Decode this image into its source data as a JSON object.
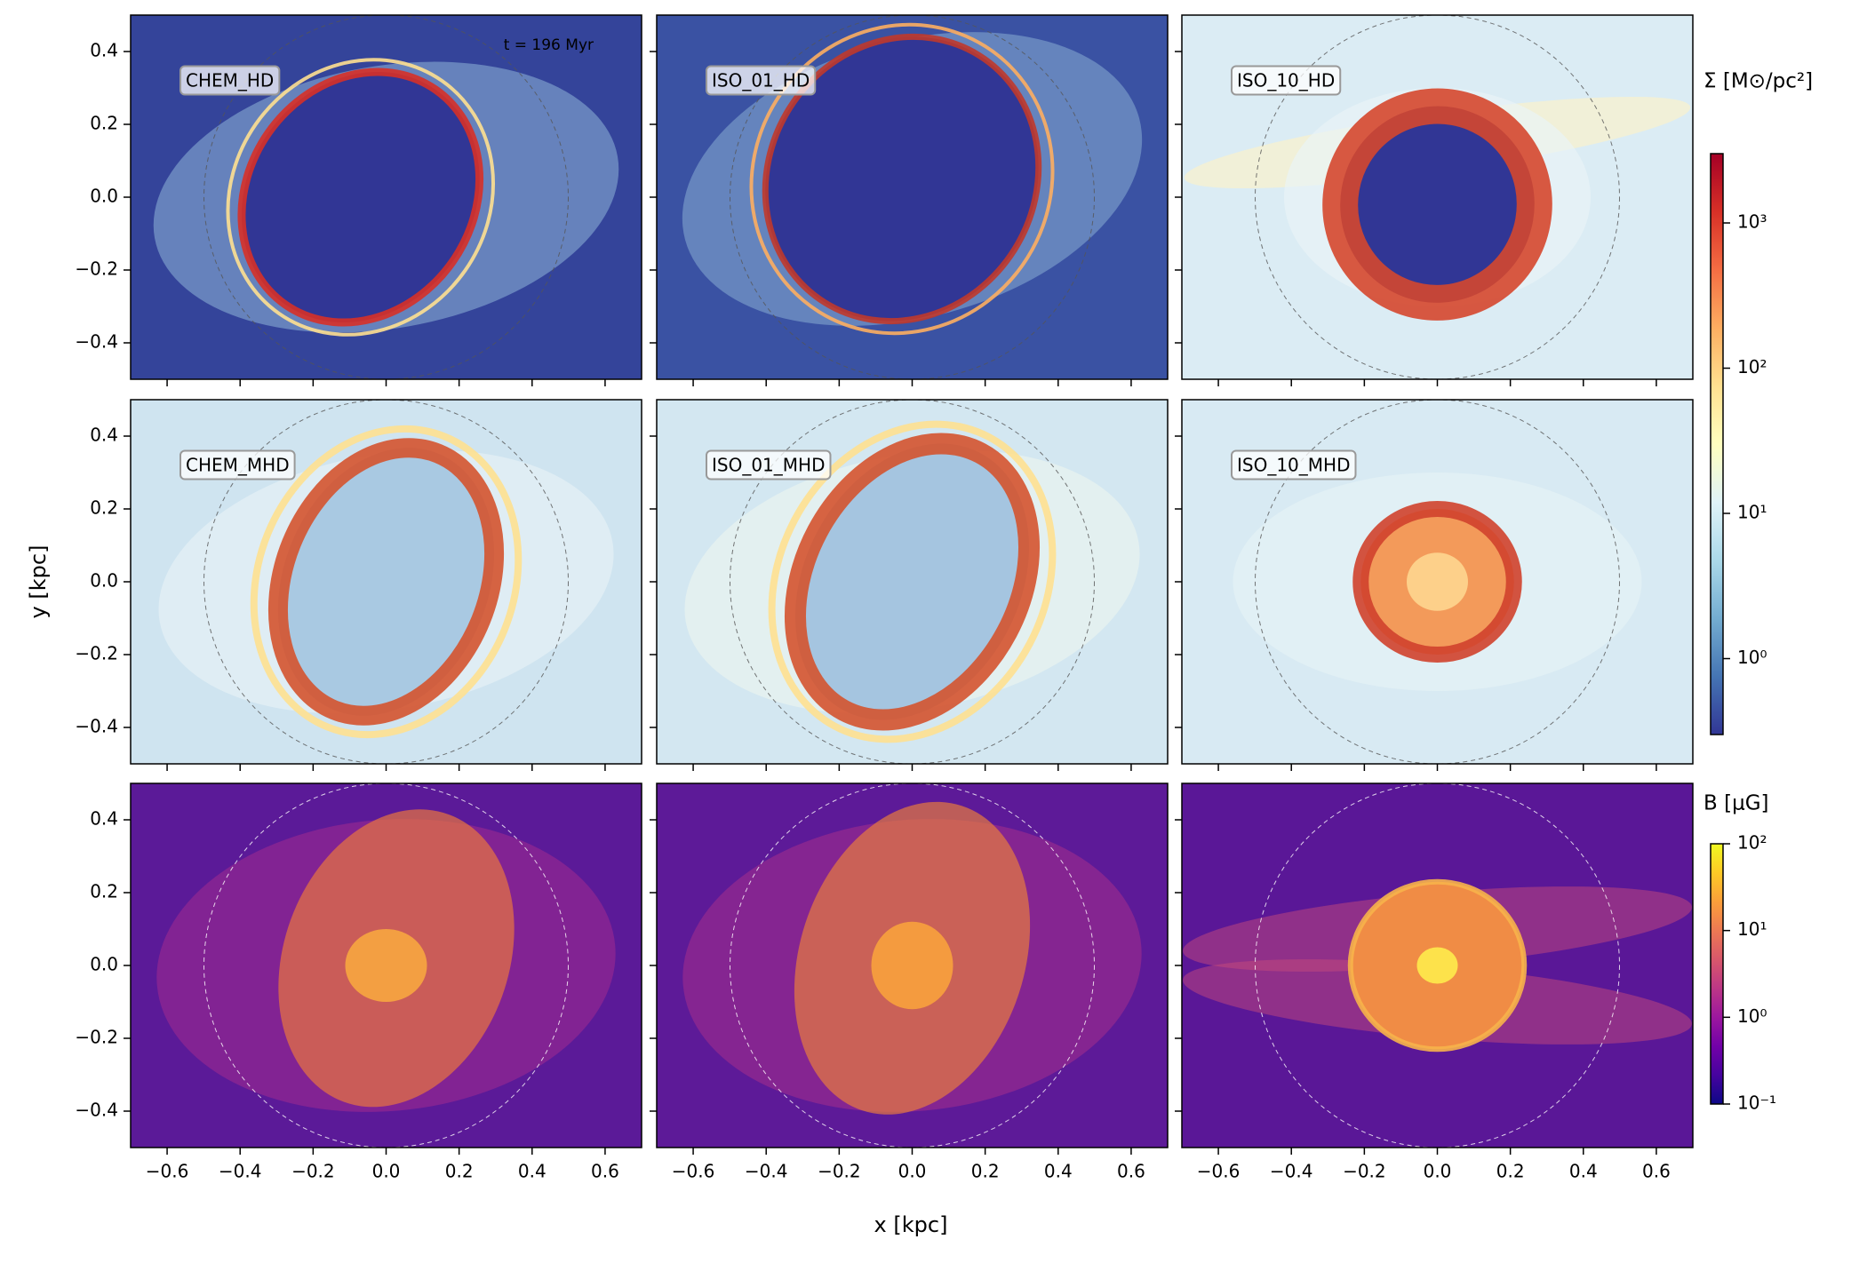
{
  "chart_data": {
    "type": "image-grid",
    "xlabel": "x [kpc]",
    "ylabel": "y [kpc]",
    "annotation": "t = 196 Myr",
    "xlim": [
      -0.7,
      0.7
    ],
    "ylim": [
      -0.5,
      0.5
    ],
    "xticks": [
      {
        "value": -0.6,
        "label": "−0.6"
      },
      {
        "value": -0.4,
        "label": "−0.4"
      },
      {
        "value": -0.2,
        "label": "−0.2"
      },
      {
        "value": 0,
        "label": "0.0"
      },
      0.2,
      0.4,
      0.6
    ],
    "yticks": [
      {
        "value": -0.4,
        "label": "−0.4"
      },
      {
        "value": -0.2,
        "label": "−0.2"
      },
      {
        "value": 0,
        "label": "0.0"
      },
      0.2,
      0.4
    ],
    "colorbars": [
      {
        "label": "Σ [M⊙/pc²]",
        "colormap": "RdYlBu_r",
        "log": true,
        "lim": [
          0.3,
          3000
        ],
        "ticks": [
          {
            "value": 1,
            "label": "10⁰"
          },
          {
            "value": 10,
            "label": "10¹"
          },
          {
            "value": 100,
            "label": "10²"
          },
          {
            "value": 1000,
            "label": "10³"
          }
        ]
      },
      {
        "label": "B [μG]",
        "colormap": "plasma",
        "log": true,
        "lim": [
          0.1,
          100
        ],
        "ticks": [
          {
            "value": 0.1,
            "label": "10⁻¹"
          },
          {
            "value": 1,
            "label": "10⁰"
          },
          {
            "value": 10,
            "label": "10¹"
          },
          {
            "value": 100,
            "label": "10²"
          }
        ]
      }
    ],
    "panels": [
      {
        "label": "CHEM_HD",
        "colorbar": 0
      },
      {
        "label": "ISO_01_HD",
        "colorbar": 0
      },
      {
        "label": "ISO_10_HD",
        "colorbar": 0
      },
      {
        "label": "CHEM_MHD",
        "colorbar": 0
      },
      {
        "label": "ISO_01_MHD",
        "colorbar": 0
      },
      {
        "label": "ISO_10_MHD",
        "colorbar": 0
      },
      {
        "colorbar": 1
      },
      {
        "colorbar": 1
      },
      {
        "colorbar": 1
      }
    ]
  }
}
